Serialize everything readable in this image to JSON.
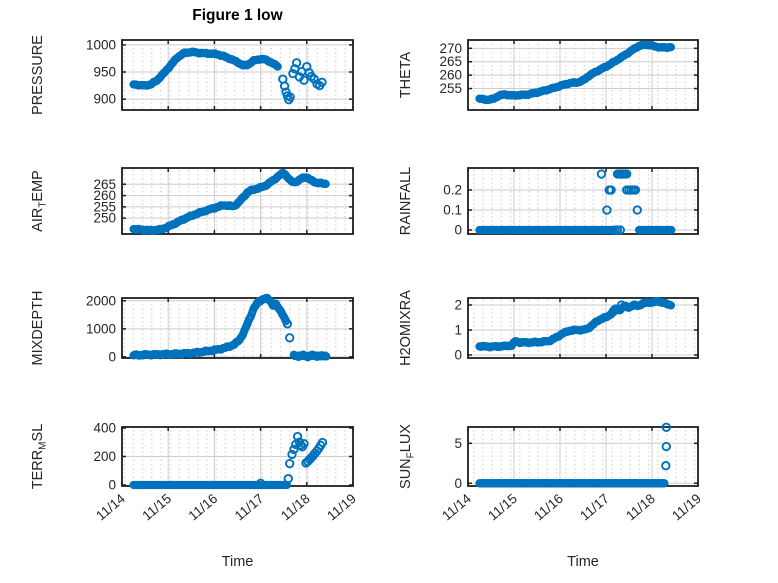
{
  "title": "Figure 1 low",
  "xlabel": "Time",
  "colors": {
    "marker": "#0072BD",
    "axis_box": "#1f1f1f",
    "major_grid": "#cdcdcd",
    "minor_dot": "#b9b9b9",
    "text": "#262626",
    "background": "#ffffff"
  },
  "x_axis": {
    "lim": [
      14,
      19
    ],
    "ticks": [
      14,
      15,
      16,
      17,
      18,
      19
    ],
    "tick_labels": [
      "11/14",
      "11/15",
      "11/16",
      "11/17",
      "11/18",
      "11/19"
    ]
  },
  "chart_data": [
    {
      "name": "PRESSURE",
      "type": "scatter",
      "ylabel_parts": [
        {
          "text": "PRESSURE",
          "sub": false
        }
      ],
      "ylim": [
        880,
        1009
      ],
      "yticks": [
        900,
        950,
        1000
      ],
      "ytick_labels": [
        "900",
        "950",
        "1000"
      ],
      "dense": [
        {
          "step": 0.02,
          "jitter": 1.0,
          "keys": [
            [
              14.25,
              927
            ],
            [
              14.5,
              925
            ],
            [
              14.62,
              927
            ],
            [
              14.75,
              934
            ],
            [
              14.9,
              947
            ],
            [
              15.05,
              962
            ],
            [
              15.2,
              977
            ],
            [
              15.35,
              985
            ],
            [
              15.5,
              987
            ],
            [
              15.7,
              985
            ],
            [
              15.9,
              984
            ],
            [
              16.05,
              983
            ],
            [
              16.2,
              979
            ],
            [
              16.35,
              974
            ],
            [
              16.5,
              968
            ],
            [
              16.62,
              962
            ],
            [
              16.72,
              963
            ],
            [
              16.85,
              971
            ],
            [
              17.0,
              974
            ],
            [
              17.1,
              973
            ],
            [
              17.2,
              969
            ],
            [
              17.3,
              964
            ],
            [
              17.38,
              960
            ]
          ]
        }
      ],
      "sparse": [
        [
          17.48,
          937
        ],
        [
          17.52,
          924
        ],
        [
          17.55,
          913
        ],
        [
          17.58,
          906
        ],
        [
          17.61,
          899
        ],
        [
          17.64,
          904
        ],
        [
          17.7,
          947
        ],
        [
          17.74,
          956
        ],
        [
          17.78,
          967
        ],
        [
          17.84,
          941
        ],
        [
          17.89,
          951
        ],
        [
          17.94,
          935
        ],
        [
          18.0,
          960
        ],
        [
          18.05,
          949
        ],
        [
          18.1,
          942
        ],
        [
          18.16,
          937
        ],
        [
          18.22,
          928
        ],
        [
          18.28,
          925
        ],
        [
          18.33,
          931
        ]
      ]
    },
    {
      "name": "THETA",
      "type": "scatter",
      "ylabel_parts": [
        {
          "text": "THETA",
          "sub": false
        }
      ],
      "ylim": [
        247,
        273.1
      ],
      "yticks": [
        255,
        260,
        265,
        270
      ],
      "ytick_labels": [
        "255",
        "260",
        "265",
        "270"
      ],
      "dense": [
        {
          "step": 0.02,
          "jitter": 0.18,
          "keys": [
            [
              14.25,
              251.2
            ],
            [
              14.4,
              250.8
            ],
            [
              14.55,
              251.1
            ],
            [
              14.68,
              252.4
            ],
            [
              14.8,
              252.8
            ],
            [
              14.95,
              252.4
            ],
            [
              15.1,
              252.5
            ],
            [
              15.3,
              252.8
            ],
            [
              15.5,
              253.5
            ],
            [
              15.7,
              254.4
            ],
            [
              15.9,
              255.4
            ],
            [
              16.1,
              256.5
            ],
            [
              16.25,
              257.1
            ],
            [
              16.4,
              257.3
            ],
            [
              16.5,
              258.0
            ],
            [
              16.62,
              259.6
            ],
            [
              16.75,
              261.0
            ],
            [
              16.9,
              262.3
            ],
            [
              17.05,
              263.6
            ],
            [
              17.2,
              265.2
            ],
            [
              17.35,
              266.8
            ],
            [
              17.5,
              268.5
            ],
            [
              17.62,
              269.9
            ],
            [
              17.72,
              270.9
            ],
            [
              17.82,
              271.3
            ],
            [
              17.95,
              271.2
            ],
            [
              18.08,
              270.6
            ],
            [
              18.2,
              270.3
            ],
            [
              18.32,
              270.3
            ],
            [
              18.42,
              270.5
            ]
          ]
        }
      ],
      "sparse": []
    },
    {
      "name": "AIR_TEMP",
      "type": "scatter",
      "ylabel_parts": [
        {
          "text": "AIR",
          "sub": false
        },
        {
          "text": "T",
          "sub": true
        },
        {
          "text": "EMP",
          "sub": false
        }
      ],
      "ylim": [
        243,
        272.2
      ],
      "yticks": [
        250,
        255,
        260,
        265
      ],
      "ytick_labels": [
        "250",
        "255",
        "260",
        "265"
      ],
      "dense": [
        {
          "step": 0.02,
          "jitter": 0.3,
          "keys": [
            [
              14.25,
              245.2
            ],
            [
              14.45,
              244.8
            ],
            [
              14.65,
              244.6
            ],
            [
              14.85,
              245.0
            ],
            [
              15.0,
              246.2
            ],
            [
              15.2,
              248.2
            ],
            [
              15.4,
              250.2
            ],
            [
              15.6,
              251.8
            ],
            [
              15.8,
              253.2
            ],
            [
              15.95,
              254.2
            ],
            [
              16.1,
              255.1
            ],
            [
              16.2,
              255.8
            ],
            [
              16.32,
              255.4
            ],
            [
              16.42,
              255.3
            ],
            [
              16.52,
              256.8
            ],
            [
              16.62,
              259.2
            ],
            [
              16.72,
              261.5
            ],
            [
              16.82,
              262.5
            ],
            [
              16.95,
              263.2
            ],
            [
              17.1,
              264.3
            ],
            [
              17.25,
              266.4
            ],
            [
              17.4,
              268.8
            ],
            [
              17.5,
              270.2
            ],
            [
              17.58,
              268.2
            ],
            [
              17.66,
              266.2
            ],
            [
              17.74,
              265.9
            ],
            [
              17.82,
              266.6
            ],
            [
              17.92,
              267.9
            ],
            [
              17.99,
              268.2
            ],
            [
              18.08,
              266.9
            ],
            [
              18.18,
              265.9
            ],
            [
              18.3,
              265.4
            ],
            [
              18.42,
              265.2
            ]
          ]
        }
      ],
      "sparse": []
    },
    {
      "name": "RAINFALL",
      "type": "scatter",
      "ylabel_parts": [
        {
          "text": "RAINFALL",
          "sub": false
        }
      ],
      "ylim": [
        -0.02,
        0.31
      ],
      "yticks": [
        0,
        0.1,
        0.2
      ],
      "ytick_labels": [
        "0",
        "0.1",
        "0.2"
      ],
      "dense": [
        {
          "step": 0.02,
          "jitter": 0,
          "keys": [
            [
              14.25,
              0
            ],
            [
              17.15,
              0
            ]
          ]
        },
        {
          "step": 0.02,
          "jitter": 0,
          "keys": [
            [
              17.72,
              0
            ],
            [
              18.42,
              0
            ]
          ]
        }
      ],
      "sparse": [
        [
          17.2,
          0
        ],
        [
          17.25,
          0
        ],
        [
          17.31,
          0
        ],
        [
          16.9,
          0.28
        ],
        [
          17.25,
          0.28
        ],
        [
          17.29,
          0.28
        ],
        [
          17.33,
          0.28
        ],
        [
          17.37,
          0.28
        ],
        [
          17.41,
          0.28
        ],
        [
          17.45,
          0.28
        ],
        [
          17.07,
          0.2
        ],
        [
          17.11,
          0.2
        ],
        [
          17.45,
          0.2
        ],
        [
          17.5,
          0.2
        ],
        [
          17.55,
          0.2
        ],
        [
          17.6,
          0.2
        ],
        [
          17.64,
          0.2
        ],
        [
          17.02,
          0.1
        ],
        [
          17.68,
          0.1
        ]
      ]
    },
    {
      "name": "MIXDEPTH",
      "type": "scatter",
      "ylabel_parts": [
        {
          "text": "MIXDEPTH",
          "sub": false
        }
      ],
      "ylim": [
        -40,
        2100
      ],
      "yticks": [
        0,
        1000,
        2000
      ],
      "ytick_labels": [
        "0",
        "1000",
        "2000"
      ],
      "dense": [
        {
          "step": 0.02,
          "jitter": 28,
          "keys": [
            [
              14.25,
              60
            ],
            [
              14.5,
              70
            ],
            [
              14.75,
              82
            ],
            [
              15.0,
              95
            ],
            [
              15.25,
              108
            ],
            [
              15.5,
              130
            ],
            [
              15.7,
              170
            ],
            [
              15.9,
              215
            ],
            [
              16.05,
              255
            ],
            [
              16.2,
              305
            ],
            [
              16.35,
              385
            ],
            [
              16.45,
              460
            ],
            [
              16.55,
              620
            ],
            [
              16.65,
              920
            ],
            [
              16.75,
              1320
            ],
            [
              16.85,
              1720
            ],
            [
              16.95,
              1960
            ],
            [
              17.05,
              2060
            ],
            [
              17.15,
              2080
            ],
            [
              17.22,
              1980
            ],
            [
              17.28,
              1820
            ],
            [
              17.33,
              1880
            ],
            [
              17.4,
              1700
            ],
            [
              17.45,
              1620
            ],
            [
              17.5,
              1430
            ],
            [
              17.55,
              1270
            ]
          ]
        },
        {
          "step": 0.025,
          "jitter": 35,
          "keys": [
            [
              17.72,
              60
            ],
            [
              17.82,
              25
            ],
            [
              17.92,
              70
            ],
            [
              18.02,
              20
            ],
            [
              18.12,
              80
            ],
            [
              18.22,
              30
            ],
            [
              18.32,
              55
            ],
            [
              18.42,
              25
            ]
          ]
        }
      ],
      "sparse": [
        [
          17.58,
          1180
        ],
        [
          17.63,
          680
        ]
      ]
    },
    {
      "name": "H2OMIXRA",
      "type": "scatter",
      "ylabel_parts": [
        {
          "text": "H2OMIXRA",
          "sub": false
        }
      ],
      "ylim": [
        -0.12,
        2.28
      ],
      "yticks": [
        0,
        1,
        2
      ],
      "ytick_labels": [
        "0",
        "1",
        "2"
      ],
      "dense": [
        {
          "step": 0.02,
          "jitter": 0.025,
          "keys": [
            [
              14.25,
              0.35
            ],
            [
              14.5,
              0.33
            ],
            [
              14.75,
              0.35
            ],
            [
              14.95,
              0.38
            ],
            [
              15.03,
              0.55
            ],
            [
              15.12,
              0.5
            ],
            [
              15.35,
              0.5
            ],
            [
              15.6,
              0.52
            ],
            [
              15.78,
              0.57
            ],
            [
              15.92,
              0.7
            ],
            [
              16.05,
              0.85
            ],
            [
              16.2,
              0.97
            ],
            [
              16.35,
              1.0
            ],
            [
              16.5,
              1.0
            ],
            [
              16.6,
              1.05
            ],
            [
              16.72,
              1.22
            ],
            [
              16.82,
              1.37
            ],
            [
              16.92,
              1.46
            ],
            [
              17.02,
              1.52
            ],
            [
              17.12,
              1.66
            ],
            [
              17.2,
              1.86
            ],
            [
              17.3,
              1.8
            ],
            [
              17.4,
              1.96
            ],
            [
              17.5,
              1.9
            ],
            [
              17.6,
              2.0
            ],
            [
              17.7,
              1.96
            ],
            [
              17.8,
              2.06
            ],
            [
              17.92,
              2.1
            ],
            [
              18.02,
              2.1
            ],
            [
              18.12,
              2.15
            ],
            [
              18.22,
              2.1
            ],
            [
              18.32,
              2.04
            ],
            [
              18.42,
              2.0
            ]
          ]
        }
      ],
      "sparse": [
        [
          17.15,
          1.72
        ],
        [
          17.34,
          2.0
        ]
      ]
    },
    {
      "name": "TERR_MSL",
      "type": "scatter",
      "ylabel_parts": [
        {
          "text": "TERR",
          "sub": false
        },
        {
          "text": "M",
          "sub": true
        },
        {
          "text": "SL",
          "sub": false
        }
      ],
      "ylim": [
        -7,
        407
      ],
      "yticks": [
        0,
        200,
        400
      ],
      "ytick_labels": [
        "0",
        "200",
        "400"
      ],
      "dense": [
        {
          "step": 0.02,
          "jitter": 0,
          "keys": [
            [
              14.25,
              0
            ],
            [
              17.58,
              0
            ]
          ]
        }
      ],
      "sparse": [
        [
          17.0,
          12
        ],
        [
          17.6,
          45
        ],
        [
          17.63,
          150
        ],
        [
          17.68,
          215
        ],
        [
          17.72,
          250
        ],
        [
          17.76,
          285
        ],
        [
          17.8,
          340
        ],
        [
          17.84,
          300
        ],
        [
          17.87,
          280
        ],
        [
          17.9,
          268
        ],
        [
          17.94,
          290
        ],
        [
          17.98,
          155
        ],
        [
          18.02,
          165
        ],
        [
          18.06,
          178
        ],
        [
          18.1,
          192
        ],
        [
          18.14,
          208
        ],
        [
          18.18,
          224
        ],
        [
          18.22,
          240
        ],
        [
          18.26,
          257
        ],
        [
          18.3,
          278
        ],
        [
          18.34,
          298
        ]
      ]
    },
    {
      "name": "SUN_FLUX",
      "type": "scatter",
      "ylabel_parts": [
        {
          "text": "SUN",
          "sub": false
        },
        {
          "text": "F",
          "sub": true
        },
        {
          "text": "LUX",
          "sub": false
        }
      ],
      "ylim": [
        -0.34,
        7.04
      ],
      "yticks": [
        0,
        5
      ],
      "ytick_labels": [
        "0",
        "5"
      ],
      "dense": [
        {
          "step": 0.02,
          "jitter": 0,
          "keys": [
            [
              14.25,
              0
            ],
            [
              18.28,
              0
            ]
          ]
        }
      ],
      "sparse": [
        [
          18.3,
          2.2
        ],
        [
          18.31,
          4.6
        ],
        [
          18.31,
          7.0
        ]
      ]
    }
  ]
}
